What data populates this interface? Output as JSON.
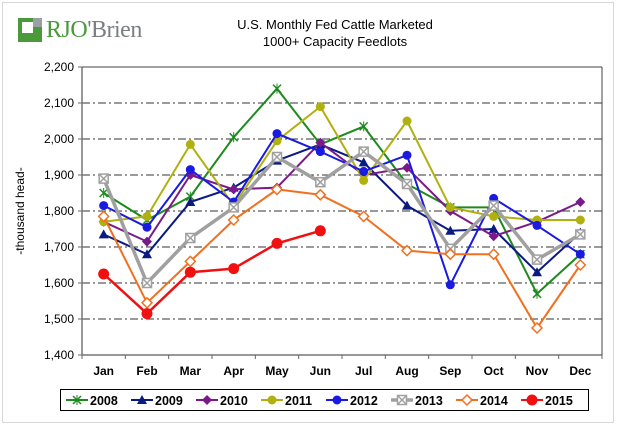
{
  "brand": {
    "name_part1": "RJO",
    "name_part2": "'Brien",
    "colors": {
      "green": "#4a9a3a",
      "gray": "#9a9fa3"
    }
  },
  "chart_data": {
    "type": "line",
    "title": "U.S. Monthly Fed Cattle Marketed",
    "subtitle": "1000+ Capacity Feedlots",
    "xlabel": "",
    "ylabel": "-thousand head-",
    "ylim": [
      1400,
      2200
    ],
    "yticks": [
      1400,
      1500,
      1600,
      1700,
      1800,
      1900,
      2000,
      2100,
      2200
    ],
    "ytick_labels": [
      "1,400",
      "1,500",
      "1,600",
      "1,700",
      "1,800",
      "1,900",
      "2,000",
      "2,100",
      "2,200"
    ],
    "grid": "horizontal dash-dot",
    "legend_position": "bottom",
    "categories": [
      "Jan",
      "Feb",
      "Mar",
      "Apr",
      "May",
      "Jun",
      "Jul",
      "Aug",
      "Sep",
      "Oct",
      "Nov",
      "Dec"
    ],
    "series": [
      {
        "name": "2008",
        "color": "#1e8a1e",
        "marker": "star",
        "values": [
          1850,
          1775,
          1840,
          2005,
          2140,
          1985,
          2035,
          1875,
          1810,
          1810,
          1570,
          1680
        ]
      },
      {
        "name": "2009",
        "color": "#0a1a80",
        "marker": "triangle",
        "values": [
          1735,
          1680,
          1825,
          1865,
          1940,
          1985,
          1935,
          1815,
          1745,
          1750,
          1630,
          1740
        ]
      },
      {
        "name": "2010",
        "color": "#7a1a8a",
        "marker": "diamond",
        "values": [
          1770,
          1715,
          1900,
          1860,
          1865,
          1990,
          1900,
          1920,
          1800,
          1730,
          1770,
          1825
        ]
      },
      {
        "name": "2011",
        "color": "#b0b010",
        "marker": "circle",
        "values": [
          1770,
          1785,
          1985,
          1815,
          1995,
          2090,
          1885,
          2050,
          1810,
          1785,
          1775,
          1775
        ]
      },
      {
        "name": "2012",
        "color": "#1a1ae0",
        "marker": "circle",
        "values": [
          1815,
          1755,
          1915,
          1825,
          2015,
          1965,
          1910,
          1955,
          1595,
          1835,
          1760,
          1680
        ]
      },
      {
        "name": "2013",
        "color": "#a0a0a0",
        "marker": "xsquare",
        "values": [
          1890,
          1600,
          1725,
          1810,
          1950,
          1880,
          1965,
          1875,
          1695,
          1815,
          1665,
          1735
        ]
      },
      {
        "name": "2014",
        "color": "#f07020",
        "marker": "open-diamond",
        "values": [
          1785,
          1545,
          1660,
          1775,
          1860,
          1845,
          1785,
          1690,
          1680,
          1680,
          1475,
          1650
        ]
      },
      {
        "name": "2015",
        "color": "#f01010",
        "marker": "big-circle",
        "values": [
          1625,
          1515,
          1630,
          1640,
          1710,
          1745
        ]
      }
    ]
  }
}
